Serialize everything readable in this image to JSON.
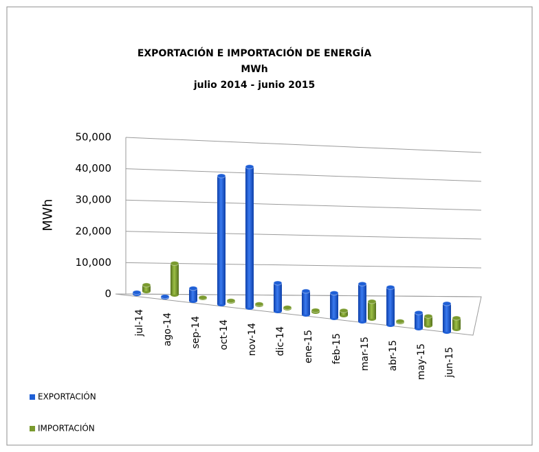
{
  "chart_data": {
    "type": "bar3d",
    "title": "EXPORTACIÓN E IMPORTACIÓN DE ENERGÍA",
    "subtitle": [
      "MWh",
      "julio  2014  -  junio  2015"
    ],
    "y_label": "MWh",
    "categories": [
      "jul-14",
      "ago-14",
      "sep-14",
      "oct-14",
      "nov-14",
      "dic-14",
      "ene-15",
      "feb-15",
      "mar-15",
      "abr-15",
      "may-15",
      "jun-15"
    ],
    "series": [
      {
        "name": "EXPORTACIÓN",
        "color": "#1f5fd6",
        "values": [
          500,
          300,
          4000,
          41000,
          45000,
          9000,
          7500,
          8000,
          12000,
          12000,
          5000,
          9000
        ]
      },
      {
        "name": "IMPORTACIÓN",
        "color": "#7a9a2e",
        "values": [
          2000,
          10000,
          200,
          300,
          300,
          300,
          500,
          1500,
          5500,
          300,
          3000,
          3500
        ]
      }
    ],
    "ylim": [
      0,
      50000
    ],
    "yticks": [
      0,
      {
        "value": 10000,
        "label": "10,000"
      },
      {
        "value": 20000,
        "label": "20,000"
      },
      {
        "value": 30000,
        "label": "30,000"
      },
      {
        "value": 40000,
        "label": "40,000"
      },
      {
        "value": 50000,
        "label": "50,000"
      }
    ],
    "grid": true,
    "legend": "bottom-left"
  }
}
